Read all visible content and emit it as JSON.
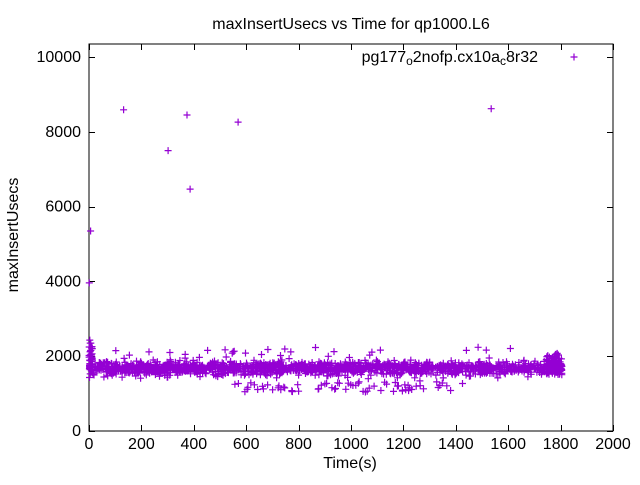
{
  "chart_data": {
    "type": "scatter",
    "title": "maxInsertUsecs vs Time for qp1000.L6",
    "xlabel": "Time(s)",
    "ylabel": "maxInsertUsecs",
    "xlim": [
      0,
      2000
    ],
    "ylim": [
      0,
      10000
    ],
    "y_axis_headroom_units": 350,
    "x_ticks": [
      0,
      200,
      400,
      600,
      800,
      1000,
      1200,
      1400,
      1600,
      1800,
      2000
    ],
    "y_ticks": [
      0,
      2000,
      4000,
      6000,
      8000,
      10000
    ],
    "grid": false,
    "legend_position": "top-right-inside",
    "background_color": "#ffffff",
    "axis_color": "#000000",
    "series": [
      {
        "name": "pg177_o2nofp.cx10a_c8r32",
        "label_parts": [
          {
            "text": "pg177",
            "sub": false
          },
          {
            "text": "o",
            "sub": true
          },
          {
            "text": "2nofp.cx10a",
            "sub": false
          },
          {
            "text": "c",
            "sub": true
          },
          {
            "text": "8r32",
            "sub": false
          }
        ],
        "marker": {
          "shape": "plus",
          "size": 7,
          "color": "#9400D3"
        },
        "description": "dense flat band of per-interval max insert latencies near 1700 usecs from t=0 to t=1805 with sparse stragglers below (~1030-1350) and rare high spikes",
        "band_summary": {
          "t_range": [
            0,
            1805
          ],
          "v_center": 1680,
          "v_typical_range": [
            1400,
            2100
          ],
          "low_straggler_range": [
            1030,
            1350
          ],
          "start_burst_range": [
            1430,
            2430
          ],
          "end_cluster_range": [
            1500,
            2080
          ]
        },
        "point_gen": {
          "seed": 1337,
          "clusters": [
            {
              "name": "main-band",
              "count": 1450,
              "t": [
                15,
                1805
              ],
              "v_dist": "normal",
              "v_mean": 1680,
              "v_sd": 90,
              "v_clip": [
                1400,
                2100
              ]
            },
            {
              "name": "upper-stragglers",
              "count": 28,
              "t": [
                30,
                1800
              ],
              "v_dist": "uniform",
              "v_range": [
                1950,
                2240
              ]
            },
            {
              "name": "lower-stragglers",
              "count": 70,
              "t": [
                540,
                1460
              ],
              "v_dist": "uniform",
              "v_range": [
                1030,
                1350
              ]
            },
            {
              "name": "start-burst",
              "count": 48,
              "t": [
                0,
                14
              ],
              "v_dist": "normal",
              "v_mean": 1880,
              "v_sd": 240,
              "v_clip": [
                1430,
                2350
              ]
            },
            {
              "name": "end-cluster",
              "count": 90,
              "t": [
                1745,
                1805
              ],
              "v_dist": "uniform",
              "v_range": [
                1500,
                2080
              ]
            }
          ],
          "outliers": [
            [
              1,
              3960
            ],
            [
              3,
              2430
            ],
            [
              6,
              5350
            ],
            [
              132,
              8590
            ],
            [
              302,
              7500
            ],
            [
              374,
              8450
            ],
            [
              386,
              6470
            ],
            [
              569,
              8260
            ],
            [
              1535,
              8620
            ]
          ]
        }
      }
    ]
  }
}
